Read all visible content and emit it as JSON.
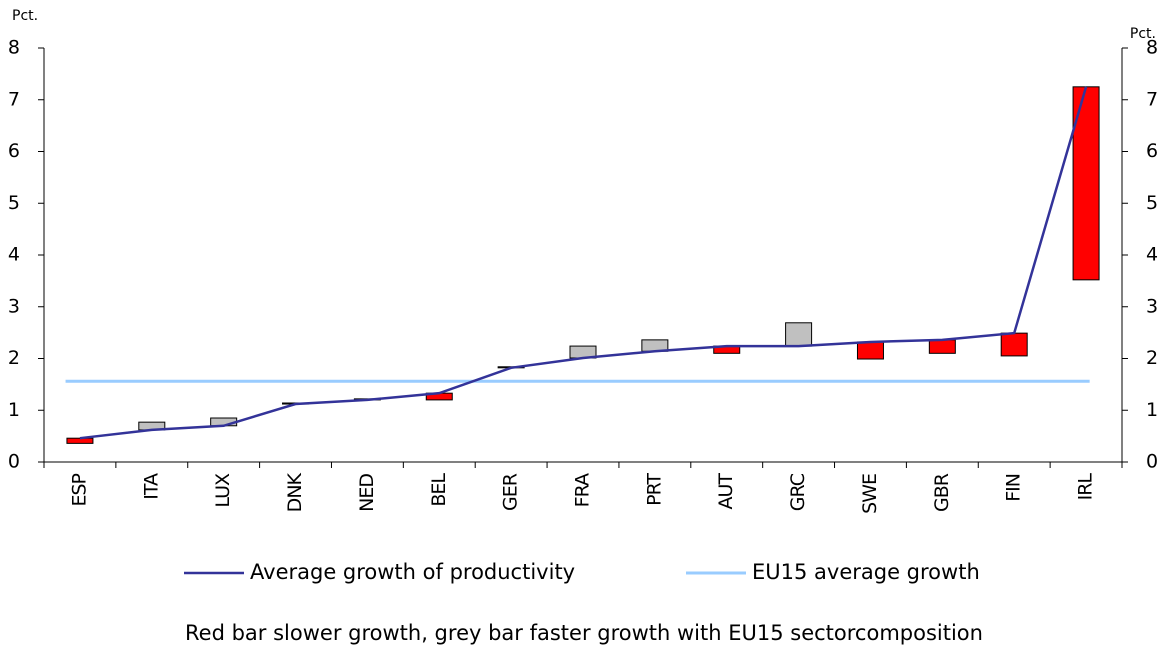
{
  "chart_data": {
    "type": "floating-bar-line",
    "ylabel": "Pct.",
    "y2label": "Pct.",
    "categories": [
      "ESP",
      "ITA",
      "LUX",
      "DNK",
      "NED",
      "BEL",
      "GER",
      "FRA",
      "PRT",
      "AUT",
      "GRC",
      "SWE",
      "GBR",
      "FIN",
      "IRL"
    ],
    "series": [
      {
        "name": "Average growth of productivity",
        "color": "#333399",
        "values": [
          0.46,
          0.62,
          0.7,
          1.12,
          1.2,
          1.33,
          1.82,
          2.01,
          2.14,
          2.24,
          2.24,
          2.32,
          2.36,
          2.49,
          7.25
        ]
      },
      {
        "name": "EU15 average growth",
        "color": "#99ccff",
        "value": 1.56
      }
    ],
    "bars": {
      "values": [
        0.36,
        0.77,
        0.85,
        1.14,
        1.22,
        1.2,
        1.84,
        2.24,
        2.36,
        2.1,
        2.69,
        1.99,
        2.1,
        2.05,
        3.52
      ],
      "colors": [
        "#ff0000",
        "#c0c0c0",
        "#c0c0c0",
        "#c0c0c0",
        "#c0c0c0",
        "#ff0000",
        "#c0c0c0",
        "#c0c0c0",
        "#c0c0c0",
        "#ff0000",
        "#c0c0c0",
        "#ff0000",
        "#ff0000",
        "#ff0000",
        "#ff0000"
      ]
    },
    "note": "Red bar slower growth, grey bar faster growth with EU15 sectorcomposition",
    "ylim": [
      0,
      8
    ],
    "yticks": [
      0,
      1,
      2,
      3,
      4,
      5,
      6,
      7,
      8
    ],
    "y2lim": [
      0,
      8
    ],
    "y2ticks": [
      0,
      1,
      2,
      3,
      4,
      5,
      6,
      7,
      8
    ]
  }
}
